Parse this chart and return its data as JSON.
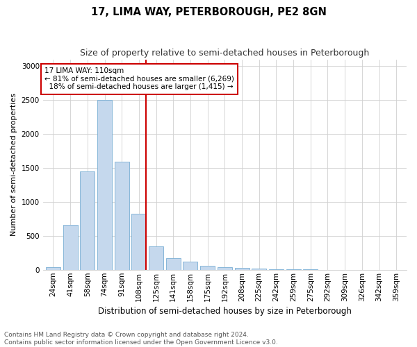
{
  "title": "17, LIMA WAY, PETERBOROUGH, PE2 8GN",
  "subtitle": "Size of property relative to semi-detached houses in Peterborough",
  "xlabel": "Distribution of semi-detached houses by size in Peterborough",
  "ylabel": "Number of semi-detached properties",
  "categories": [
    "24sqm",
    "41sqm",
    "58sqm",
    "74sqm",
    "91sqm",
    "108sqm",
    "125sqm",
    "141sqm",
    "158sqm",
    "175sqm",
    "192sqm",
    "208sqm",
    "225sqm",
    "242sqm",
    "259sqm",
    "275sqm",
    "292sqm",
    "309sqm",
    "326sqm",
    "342sqm",
    "359sqm"
  ],
  "values": [
    40,
    660,
    1450,
    2500,
    1590,
    830,
    350,
    175,
    120,
    60,
    40,
    30,
    20,
    10,
    5,
    3,
    2,
    1,
    1,
    1,
    1
  ],
  "bar_color": "#c5d8ed",
  "bar_edge_color": "#7aafd4",
  "property_label": "17 LIMA WAY: 110sqm",
  "pct_smaller": 81,
  "n_smaller": "6,269",
  "pct_larger": 18,
  "n_larger": "1,415",
  "vline_bin_index": 5,
  "annotation_box_facecolor": "#ffffff",
  "annotation_box_edgecolor": "#cc0000",
  "vline_color": "#cc0000",
  "ylim": [
    0,
    3100
  ],
  "yticks": [
    0,
    500,
    1000,
    1500,
    2000,
    2500,
    3000
  ],
  "footer_line1": "Contains HM Land Registry data © Crown copyright and database right 2024.",
  "footer_line2": "Contains public sector information licensed under the Open Government Licence v3.0.",
  "title_fontsize": 10.5,
  "subtitle_fontsize": 9,
  "xlabel_fontsize": 8.5,
  "ylabel_fontsize": 8,
  "tick_fontsize": 7.5,
  "footer_fontsize": 6.5,
  "annotation_fontsize": 7.5
}
